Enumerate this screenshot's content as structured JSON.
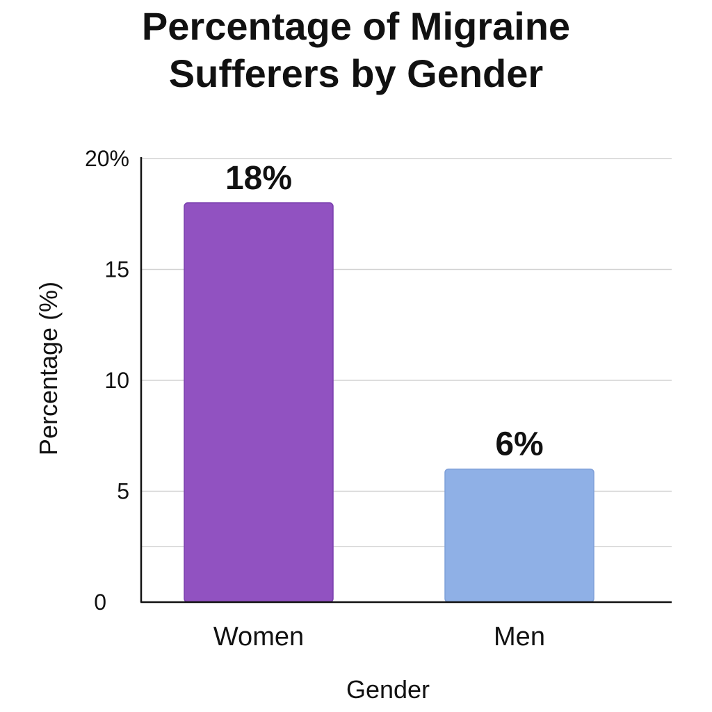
{
  "chart_data": {
    "type": "bar",
    "title": [
      "Percentage of Migraine",
      "Sufferers by Gender"
    ],
    "xlabel": "Gender",
    "ylabel": "Percentage (%)",
    "categories": [
      "Women",
      "Men"
    ],
    "values": [
      18,
      6
    ],
    "data_labels": [
      "18%",
      "6%"
    ],
    "bar_colors": [
      "#9152c1",
      "#8fb0e6"
    ],
    "ylim": [
      0,
      20
    ],
    "ticks": [
      {
        "value": 0,
        "label": "0"
      },
      {
        "value": 5,
        "label": "5"
      },
      {
        "value": 10,
        "label": "10"
      },
      {
        "value": 15,
        "label": "15"
      },
      {
        "value": 20,
        "label": "20%"
      }
    ],
    "gridlines": [
      5,
      10,
      15,
      20
    ],
    "extra_gridlines": [
      2.5
    ],
    "grid": true
  }
}
